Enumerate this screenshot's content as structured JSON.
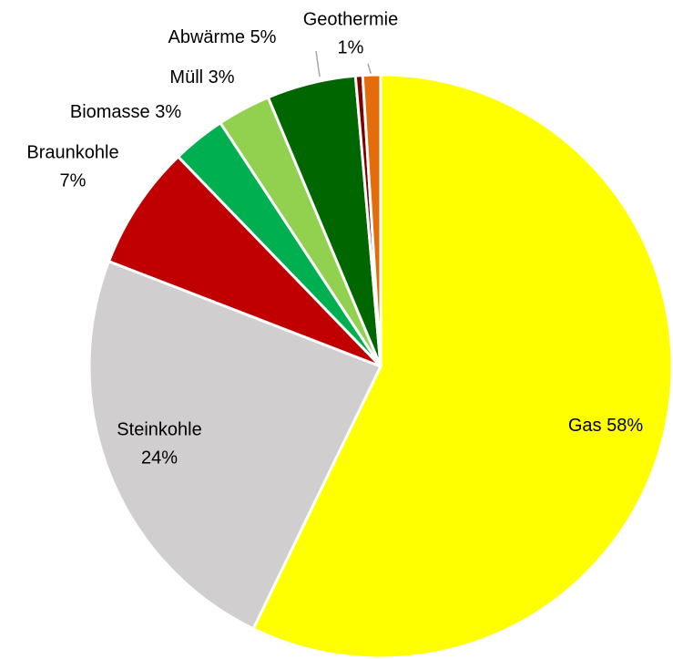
{
  "chart_data": {
    "type": "pie",
    "categories": [
      "Gas",
      "Steinkohle",
      "Braunkohle",
      "Biomasse",
      "Müll",
      "Abwärme",
      null,
      "Geothermie"
    ],
    "values": [
      58,
      24,
      7,
      3,
      3,
      5,
      0.4,
      1
    ],
    "value_labels": [
      "58%",
      "24%",
      "7%",
      "3%",
      "3%",
      "5%",
      null,
      "1%"
    ],
    "colors": [
      "#ffff00",
      "#d0cece",
      "#c00000",
      "#00b050",
      "#92d050",
      "#006600",
      "#7f0000",
      "#e46c0a"
    ]
  }
}
